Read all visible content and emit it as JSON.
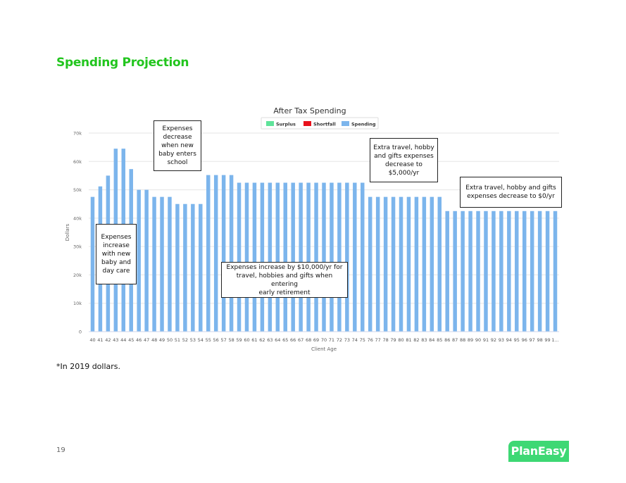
{
  "page": {
    "title": "Spending Projection",
    "footnote": "*In 2019 dollars.",
    "page_number": "19",
    "logo_text": "PlanEasy"
  },
  "chart_data": {
    "type": "bar",
    "title": "After Tax Spending",
    "xlabel": "Client Age",
    "ylabel": "Dollars",
    "ylim": [
      0,
      70000
    ],
    "yticks": [
      0,
      10000,
      20000,
      30000,
      40000,
      50000,
      60000,
      70000
    ],
    "ytick_labels": [
      "0",
      "10k",
      "20k",
      "30k",
      "40k",
      "50k",
      "60k",
      "70k"
    ],
    "grid": true,
    "legend_position": "top-center",
    "legend": [
      {
        "name": "Surplus",
        "color": "#5fe39a"
      },
      {
        "name": "Shortfall",
        "color": "#e8101b"
      },
      {
        "name": "Spending",
        "color": "#7cb5ec"
      }
    ],
    "categories": [
      "40",
      "41",
      "42",
      "43",
      "44",
      "45",
      "46",
      "47",
      "48",
      "49",
      "50",
      "51",
      "52",
      "53",
      "54",
      "55",
      "56",
      "57",
      "58",
      "59",
      "60",
      "61",
      "62",
      "63",
      "64",
      "65",
      "66",
      "67",
      "68",
      "69",
      "70",
      "71",
      "72",
      "73",
      "74",
      "75",
      "76",
      "77",
      "78",
      "79",
      "80",
      "81",
      "82",
      "83",
      "84",
      "85",
      "86",
      "87",
      "88",
      "89",
      "90",
      "91",
      "92",
      "93",
      "94",
      "95",
      "96",
      "97",
      "98",
      "99",
      "1..."
    ],
    "series": [
      {
        "name": "Spending",
        "color": "#7cb5ec",
        "values": [
          47500,
          51200,
          55000,
          64500,
          64500,
          57300,
          50000,
          50000,
          47500,
          47500,
          47500,
          45000,
          45000,
          45000,
          45000,
          55200,
          55200,
          55200,
          55200,
          52500,
          52500,
          52500,
          52500,
          52500,
          52500,
          52500,
          52500,
          52500,
          52500,
          52500,
          52500,
          52500,
          52500,
          52500,
          52500,
          52500,
          47500,
          47500,
          47500,
          47500,
          47500,
          47500,
          47500,
          47500,
          47500,
          47500,
          42500,
          42500,
          42500,
          42500,
          42500,
          42500,
          42500,
          42500,
          42500,
          42500,
          42500,
          42500,
          42500,
          42500,
          42500
        ]
      }
    ],
    "annotations": [
      {
        "text": "Expenses\ndecrease\nwhen new\nbaby enters\nschool"
      },
      {
        "text": "Expenses\nincrease\nwith new\nbaby and\nday care"
      },
      {
        "text": "Expenses increase by $10,000/yr for\ntravel, hobbies and gifts when entering\nearly retirement"
      },
      {
        "text": "Extra travel, hobby\nand gifts expenses\ndecrease to\n$5,000/yr"
      },
      {
        "text": "Extra travel, hobby and gifts\nexpenses decrease to $0/yr"
      }
    ]
  }
}
